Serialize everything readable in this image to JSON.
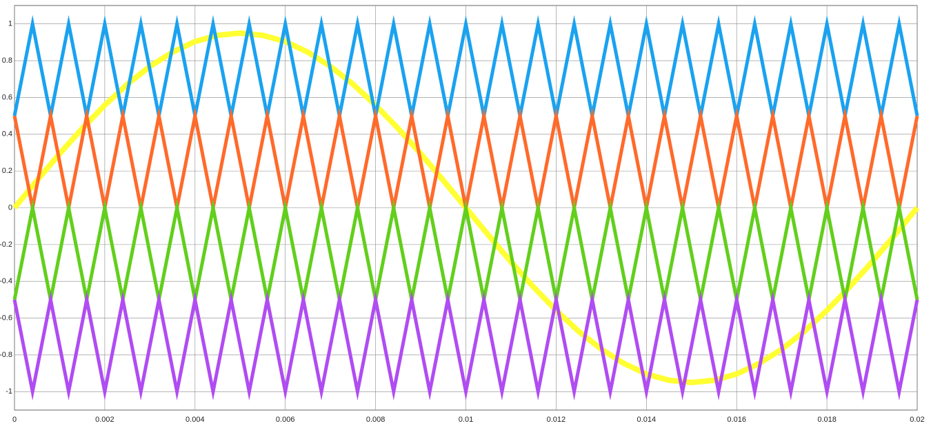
{
  "chart_data": {
    "type": "line",
    "xlim": [
      0,
      0.02
    ],
    "ylim": [
      -1.1,
      1.1
    ],
    "xticks": [
      0,
      0.002,
      0.004,
      0.006,
      0.008,
      0.01,
      0.012,
      0.014,
      0.016,
      0.018,
      0.02
    ],
    "yticks": [
      -1,
      -0.8,
      -0.6,
      -0.4,
      -0.2,
      0,
      0.2,
      0.4,
      0.6,
      0.8,
      1
    ],
    "grid": true,
    "series": [
      {
        "color": "#ffff33",
        "width": 8,
        "x": [
          0,
          0.0005,
          0.001,
          0.0015,
          0.002,
          0.0025,
          0.003,
          0.0035,
          0.004,
          0.0045,
          0.005,
          0.0055,
          0.006,
          0.0065,
          0.007,
          0.0075,
          0.008,
          0.0085,
          0.009,
          0.0095,
          0.01,
          0.0105,
          0.011,
          0.0115,
          0.012,
          0.0125,
          0.013,
          0.0135,
          0.014,
          0.0145,
          0.015,
          0.0155,
          0.016,
          0.0165,
          0.017,
          0.0175,
          0.018,
          0.0185,
          0.019,
          0.0195,
          0.02
        ],
        "values": [
          0,
          0.149,
          0.294,
          0.431,
          0.558,
          0.672,
          0.769,
          0.846,
          0.904,
          0.938,
          0.95,
          0.938,
          0.904,
          0.846,
          0.769,
          0.672,
          0.558,
          0.431,
          0.294,
          0.149,
          0,
          -0.149,
          -0.294,
          -0.431,
          -0.558,
          -0.672,
          -0.769,
          -0.846,
          -0.904,
          -0.938,
          -0.95,
          -0.938,
          -0.904,
          -0.846,
          -0.769,
          -0.672,
          -0.558,
          -0.431,
          -0.294,
          -0.149,
          0
        ]
      },
      {
        "color": "#1aa2f0",
        "width": 5,
        "x": [
          0,
          0.0004,
          0.0008,
          0.0012,
          0.0016,
          0.002,
          0.0024,
          0.0028,
          0.0032,
          0.0036,
          0.004,
          0.0044,
          0.0048,
          0.0052,
          0.0056,
          0.006,
          0.0064,
          0.0068,
          0.0072,
          0.0076,
          0.008,
          0.0084,
          0.0088,
          0.0092,
          0.0096,
          0.01,
          0.0104,
          0.0108,
          0.0112,
          0.0116,
          0.012,
          0.0124,
          0.0128,
          0.0132,
          0.0136,
          0.014,
          0.0144,
          0.0148,
          0.0152,
          0.0156,
          0.016,
          0.0164,
          0.0168,
          0.0172,
          0.0176,
          0.018,
          0.0184,
          0.0188,
          0.0192,
          0.0196,
          0.02
        ],
        "values": [
          0.5,
          1,
          0.5,
          1,
          0.5,
          1,
          0.5,
          1,
          0.5,
          1,
          0.5,
          1,
          0.5,
          1,
          0.5,
          1,
          0.5,
          1,
          0.5,
          1,
          0.5,
          1,
          0.5,
          1,
          0.5,
          1,
          0.5,
          1,
          0.5,
          1,
          0.5,
          1,
          0.5,
          1,
          0.5,
          1,
          0.5,
          1,
          0.5,
          1,
          0.5,
          1,
          0.5,
          1,
          0.5,
          1,
          0.5,
          1,
          0.5,
          1,
          0.5
        ]
      },
      {
        "color": "#ff6a2b",
        "width": 5,
        "x": [
          0,
          0.0004,
          0.0008,
          0.0012,
          0.0016,
          0.002,
          0.0024,
          0.0028,
          0.0032,
          0.0036,
          0.004,
          0.0044,
          0.0048,
          0.0052,
          0.0056,
          0.006,
          0.0064,
          0.0068,
          0.0072,
          0.0076,
          0.008,
          0.0084,
          0.0088,
          0.0092,
          0.0096,
          0.01,
          0.0104,
          0.0108,
          0.0112,
          0.0116,
          0.012,
          0.0124,
          0.0128,
          0.0132,
          0.0136,
          0.014,
          0.0144,
          0.0148,
          0.0152,
          0.0156,
          0.016,
          0.0164,
          0.0168,
          0.0172,
          0.0176,
          0.018,
          0.0184,
          0.0188,
          0.0192,
          0.0196,
          0.02
        ],
        "values": [
          0.5,
          0,
          0.5,
          0,
          0.5,
          0,
          0.5,
          0,
          0.5,
          0,
          0.5,
          0,
          0.5,
          0,
          0.5,
          0,
          0.5,
          0,
          0.5,
          0,
          0.5,
          0,
          0.5,
          0,
          0.5,
          0,
          0.5,
          0,
          0.5,
          0,
          0.5,
          0,
          0.5,
          0,
          0.5,
          0,
          0.5,
          0,
          0.5,
          0,
          0.5,
          0,
          0.5,
          0,
          0.5,
          0,
          0.5,
          0,
          0.5,
          0,
          0.5
        ]
      },
      {
        "color": "#62cf1c",
        "width": 5,
        "x": [
          0,
          0.0004,
          0.0008,
          0.0012,
          0.0016,
          0.002,
          0.0024,
          0.0028,
          0.0032,
          0.0036,
          0.004,
          0.0044,
          0.0048,
          0.0052,
          0.0056,
          0.006,
          0.0064,
          0.0068,
          0.0072,
          0.0076,
          0.008,
          0.0084,
          0.0088,
          0.0092,
          0.0096,
          0.01,
          0.0104,
          0.0108,
          0.0112,
          0.0116,
          0.012,
          0.0124,
          0.0128,
          0.0132,
          0.0136,
          0.014,
          0.0144,
          0.0148,
          0.0152,
          0.0156,
          0.016,
          0.0164,
          0.0168,
          0.0172,
          0.0176,
          0.018,
          0.0184,
          0.0188,
          0.0192,
          0.0196,
          0.02
        ],
        "values": [
          -0.5,
          0,
          -0.5,
          0,
          -0.5,
          0,
          -0.5,
          0,
          -0.5,
          0,
          -0.5,
          0,
          -0.5,
          0,
          -0.5,
          0,
          -0.5,
          0,
          -0.5,
          0,
          -0.5,
          0,
          -0.5,
          0,
          -0.5,
          0,
          -0.5,
          0,
          -0.5,
          0,
          -0.5,
          0,
          -0.5,
          0,
          -0.5,
          0,
          -0.5,
          0,
          -0.5,
          0,
          -0.5,
          0,
          -0.5,
          0,
          -0.5,
          0,
          -0.5,
          0,
          -0.5,
          0,
          -0.5
        ]
      },
      {
        "color": "#b04cf2",
        "width": 5,
        "x": [
          0,
          0.0004,
          0.0008,
          0.0012,
          0.0016,
          0.002,
          0.0024,
          0.0028,
          0.0032,
          0.0036,
          0.004,
          0.0044,
          0.0048,
          0.0052,
          0.0056,
          0.006,
          0.0064,
          0.0068,
          0.0072,
          0.0076,
          0.008,
          0.0084,
          0.0088,
          0.0092,
          0.0096,
          0.01,
          0.0104,
          0.0108,
          0.0112,
          0.0116,
          0.012,
          0.0124,
          0.0128,
          0.0132,
          0.0136,
          0.014,
          0.0144,
          0.0148,
          0.0152,
          0.0156,
          0.016,
          0.0164,
          0.0168,
          0.0172,
          0.0176,
          0.018,
          0.0184,
          0.0188,
          0.0192,
          0.0196,
          0.02
        ],
        "values": [
          -0.5,
          -1,
          -0.5,
          -1,
          -0.5,
          -1,
          -0.5,
          -1,
          -0.5,
          -1,
          -0.5,
          -1,
          -0.5,
          -1,
          -0.5,
          -1,
          -0.5,
          -1,
          -0.5,
          -1,
          -0.5,
          -1,
          -0.5,
          -1,
          -0.5,
          -1,
          -0.5,
          -1,
          -0.5,
          -1,
          -0.5,
          -1,
          -0.5,
          -1,
          -0.5,
          -1,
          -0.5,
          -1,
          -0.5,
          -1,
          -0.5,
          -1,
          -0.5,
          -1,
          -0.5,
          -1,
          -0.5,
          -1,
          -0.5,
          -1,
          -0.5
        ]
      }
    ]
  }
}
